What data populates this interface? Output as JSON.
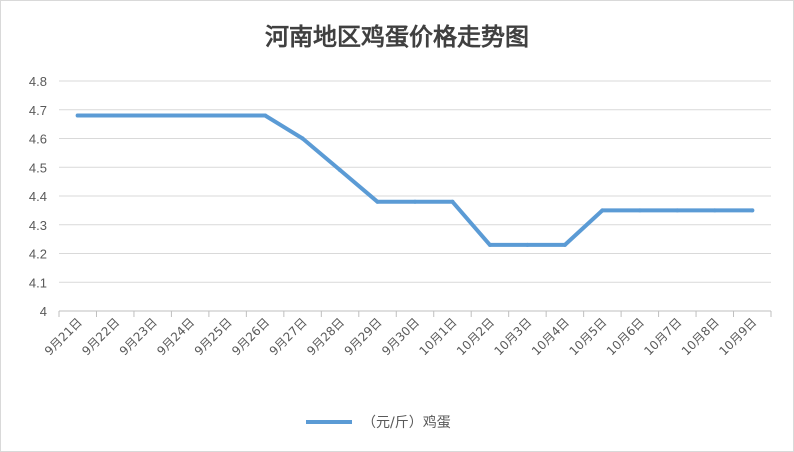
{
  "chart_data": {
    "type": "line",
    "title": "河南地区鸡蛋价格走势图",
    "categories": [
      "9月21日",
      "9月22日",
      "9月23日",
      "9月24日",
      "9月25日",
      "9月26日",
      "9月27日",
      "9月28日",
      "9月29日",
      "9月30日",
      "10月1日",
      "10月2日",
      "10月3日",
      "10月4日",
      "10月5日",
      "10月6日",
      "10月7日",
      "10月8日",
      "10月9日"
    ],
    "series": [
      {
        "name": "（元/斤）鸡蛋",
        "color": "#5b9bd5",
        "values": [
          4.68,
          4.68,
          4.68,
          4.68,
          4.68,
          4.68,
          4.6,
          4.49,
          4.38,
          4.38,
          4.38,
          4.23,
          4.23,
          4.23,
          4.35,
          4.35,
          4.35,
          4.35,
          4.35
        ]
      }
    ],
    "yticks": [
      "4",
      "4.1",
      "4.2",
      "4.3",
      "4.4",
      "4.5",
      "4.6",
      "4.7",
      "4.8"
    ],
    "ylim": [
      4,
      4.8
    ],
    "grid": true,
    "legend_position": "bottom"
  }
}
